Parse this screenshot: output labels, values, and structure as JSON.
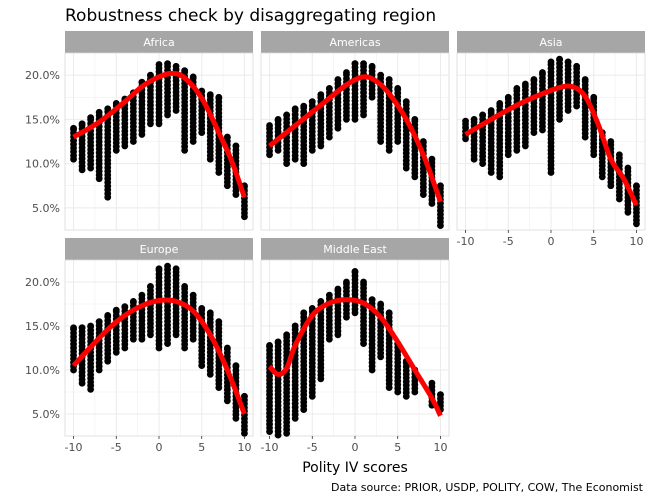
{
  "chart_data": {
    "type": "scatter",
    "title": "Robustness check by disaggregating region",
    "xlabel": "Polity IV scores",
    "ylabel": "",
    "caption": "Data source: PRIOR, USDP, POLITY, COW, The Economist",
    "xlim": [
      -11,
      11
    ],
    "ylim": [
      2.5,
      22.5
    ],
    "x_ticks": [
      -10,
      -5,
      0,
      5,
      10
    ],
    "x_tick_labels": [
      "-10",
      "-5",
      "0",
      "5",
      "10"
    ],
    "y_ticks": [
      5,
      10,
      15,
      20
    ],
    "y_tick_labels": [
      "5.0%",
      "10.0%",
      "15.0%",
      "20.0%"
    ],
    "grid": true,
    "colors": {
      "points": "#000000",
      "fit": "#ff0000",
      "strip": "#a6a6a6",
      "grid": "#ebebeb"
    },
    "panels": [
      {
        "name": "Africa",
        "fit": [
          [
            -10,
            13.0
          ],
          [
            -7,
            14.7
          ],
          [
            -4,
            17.0
          ],
          [
            -2,
            18.7
          ],
          [
            0,
            19.8
          ],
          [
            1.5,
            20.2
          ],
          [
            3,
            19.7
          ],
          [
            5,
            17.4
          ],
          [
            7,
            13.5
          ],
          [
            8.5,
            10.3
          ],
          [
            10,
            6.2
          ]
        ],
        "points": [
          {
            "x": -10,
            "min": 10.5,
            "max": 14.0
          },
          {
            "x": -9,
            "min": 9.3,
            "max": 14.5
          },
          {
            "x": -8,
            "min": 9.5,
            "max": 15.2
          },
          {
            "x": -7,
            "min": 8.3,
            "max": 15.8
          },
          {
            "x": -6,
            "min": 6.2,
            "max": 16.2
          },
          {
            "x": -5,
            "min": 11.5,
            "max": 16.8
          },
          {
            "x": -4,
            "min": 12.0,
            "max": 17.3
          },
          {
            "x": -3,
            "min": 12.5,
            "max": 18.0
          },
          {
            "x": -2,
            "min": 13.3,
            "max": 19.2
          },
          {
            "x": -1,
            "min": 14.5,
            "max": 20.0
          },
          {
            "x": 0,
            "min": 14.5,
            "max": 21.2
          },
          {
            "x": 1,
            "min": 15.5,
            "max": 21.3
          },
          {
            "x": 2,
            "min": 16.0,
            "max": 21.0
          },
          {
            "x": 3,
            "min": 11.5,
            "max": 20.5
          },
          {
            "x": 4,
            "min": 12.5,
            "max": 19.8
          },
          {
            "x": 5,
            "min": 13.5,
            "max": 18.2
          },
          {
            "x": 6,
            "min": 10.5,
            "max": 17.8
          },
          {
            "x": 7,
            "min": 9.0,
            "max": 17.5
          },
          {
            "x": 8,
            "min": 7.5,
            "max": 13.0
          },
          {
            "x": 9,
            "min": 6.5,
            "max": 12.0
          },
          {
            "x": 10,
            "min": 4.0,
            "max": 7.5
          }
        ]
      },
      {
        "name": "Americas",
        "fit": [
          [
            -10,
            12.0
          ],
          [
            -7,
            14.3
          ],
          [
            -4,
            16.6
          ],
          [
            -1,
            18.9
          ],
          [
            1,
            19.8
          ],
          [
            2.5,
            19.3
          ],
          [
            4,
            17.9
          ],
          [
            6,
            15.0
          ],
          [
            8,
            11.0
          ],
          [
            10,
            5.7
          ]
        ],
        "points": [
          {
            "x": -10,
            "min": 11.0,
            "max": 14.3
          },
          {
            "x": -9,
            "min": 11.5,
            "max": 15.0
          },
          {
            "x": -8,
            "min": 10.0,
            "max": 15.5
          },
          {
            "x": -7,
            "min": 10.5,
            "max": 16.2
          },
          {
            "x": -6,
            "min": 10.0,
            "max": 16.5
          },
          {
            "x": -5,
            "min": 11.5,
            "max": 17.0
          },
          {
            "x": -4,
            "min": 12.0,
            "max": 17.8
          },
          {
            "x": -3,
            "min": 13.0,
            "max": 18.5
          },
          {
            "x": -2,
            "min": 14.0,
            "max": 19.5
          },
          {
            "x": -1,
            "min": 15.0,
            "max": 20.3
          },
          {
            "x": 0,
            "min": 15.0,
            "max": 21.3
          },
          {
            "x": 1,
            "min": 15.5,
            "max": 21.3
          },
          {
            "x": 2,
            "min": 17.5,
            "max": 21.0
          },
          {
            "x": 3,
            "min": 12.5,
            "max": 20.0
          },
          {
            "x": 4,
            "min": 11.5,
            "max": 19.5
          },
          {
            "x": 5,
            "min": 12.5,
            "max": 18.5
          },
          {
            "x": 6,
            "min": 9.5,
            "max": 17.0
          },
          {
            "x": 7,
            "min": 8.5,
            "max": 15.0
          },
          {
            "x": 8,
            "min": 6.5,
            "max": 12.5
          },
          {
            "x": 9,
            "min": 5.5,
            "max": 10.5
          },
          {
            "x": 10,
            "min": 3.0,
            "max": 7.5
          }
        ]
      },
      {
        "name": "Asia",
        "fit": [
          [
            -10,
            13.3
          ],
          [
            -7,
            15.0
          ],
          [
            -4,
            16.6
          ],
          [
            -1,
            17.9
          ],
          [
            1,
            18.6
          ],
          [
            2.5,
            18.7
          ],
          [
            4,
            17.6
          ],
          [
            5.5,
            14.5
          ],
          [
            7,
            10.5
          ],
          [
            8.5,
            8.3
          ],
          [
            10,
            5.3
          ]
        ],
        "points": [
          {
            "x": -10,
            "min": 12.8,
            "max": 14.8
          },
          {
            "x": -9,
            "min": 10.5,
            "max": 15.0
          },
          {
            "x": -8,
            "min": 10.0,
            "max": 15.5
          },
          {
            "x": -7,
            "min": 9.0,
            "max": 16.0
          },
          {
            "x": -6,
            "min": 8.5,
            "max": 16.8
          },
          {
            "x": -5,
            "min": 11.0,
            "max": 17.5
          },
          {
            "x": -4,
            "min": 11.5,
            "max": 18.5
          },
          {
            "x": -3,
            "min": 12.0,
            "max": 19.0
          },
          {
            "x": -2,
            "min": 13.5,
            "max": 19.5
          },
          {
            "x": -1,
            "min": 13.8,
            "max": 20.3
          },
          {
            "x": 0,
            "min": 9.0,
            "max": 21.5
          },
          {
            "x": 1,
            "min": 15.0,
            "max": 21.8
          },
          {
            "x": 2,
            "min": 16.0,
            "max": 21.5
          },
          {
            "x": 3,
            "min": 16.5,
            "max": 21.0
          },
          {
            "x": 4,
            "min": 13.0,
            "max": 19.5
          },
          {
            "x": 5,
            "min": 11.0,
            "max": 17.5
          },
          {
            "x": 6,
            "min": 8.5,
            "max": 13.5
          },
          {
            "x": 7,
            "min": 7.5,
            "max": 12.5
          },
          {
            "x": 8,
            "min": 6.0,
            "max": 11.0
          },
          {
            "x": 9,
            "min": 4.5,
            "max": 9.5
          },
          {
            "x": 10,
            "min": 3.2,
            "max": 7.5
          }
        ]
      },
      {
        "name": "Europe",
        "fit": [
          [
            -10,
            10.5
          ],
          [
            -8,
            12.6
          ],
          [
            -6,
            14.6
          ],
          [
            -4,
            16.2
          ],
          [
            -2,
            17.3
          ],
          [
            0,
            17.9
          ],
          [
            2,
            17.8
          ],
          [
            4,
            16.7
          ],
          [
            6,
            14.0
          ],
          [
            8,
            10.0
          ],
          [
            10,
            5.0
          ]
        ],
        "points": [
          {
            "x": -10,
            "min": 10.0,
            "max": 14.8
          },
          {
            "x": -9,
            "min": 8.5,
            "max": 14.8
          },
          {
            "x": -8,
            "min": 7.8,
            "max": 15.0
          },
          {
            "x": -7,
            "min": 10.0,
            "max": 15.5
          },
          {
            "x": -6,
            "min": 11.0,
            "max": 16.2
          },
          {
            "x": -5,
            "min": 12.0,
            "max": 16.8
          },
          {
            "x": -4,
            "min": 12.5,
            "max": 17.2
          },
          {
            "x": -3,
            "min": 13.5,
            "max": 17.8
          },
          {
            "x": -2,
            "min": 13.5,
            "max": 18.5
          },
          {
            "x": -1,
            "min": 14.0,
            "max": 19.5
          },
          {
            "x": 0,
            "min": 12.5,
            "max": 21.5
          },
          {
            "x": 1,
            "min": 13.0,
            "max": 21.8
          },
          {
            "x": 2,
            "min": 14.0,
            "max": 21.5
          },
          {
            "x": 3,
            "min": 12.5,
            "max": 19.5
          },
          {
            "x": 4,
            "min": 13.5,
            "max": 18.5
          },
          {
            "x": 5,
            "min": 10.5,
            "max": 17.0
          },
          {
            "x": 6,
            "min": 9.5,
            "max": 16.5
          },
          {
            "x": 7,
            "min": 8.0,
            "max": 15.5
          },
          {
            "x": 8,
            "min": 6.5,
            "max": 12.5
          },
          {
            "x": 9,
            "min": 4.5,
            "max": 10.5
          },
          {
            "x": 10,
            "min": 2.8,
            "max": 7.0
          }
        ]
      },
      {
        "name": "Middle East",
        "fit": [
          [
            -10,
            10.4
          ],
          [
            -9,
            9.5
          ],
          [
            -8,
            10.2
          ],
          [
            -7,
            12.8
          ],
          [
            -5,
            16.2
          ],
          [
            -3,
            17.6
          ],
          [
            -1,
            18.0
          ],
          [
            1,
            17.6
          ],
          [
            3,
            16.0
          ],
          [
            5,
            13.2
          ],
          [
            7,
            10.0
          ],
          [
            9,
            6.8
          ],
          [
            10,
            4.8
          ]
        ],
        "points": [
          {
            "x": -10,
            "min": 3.0,
            "max": 12.8
          },
          {
            "x": -9,
            "min": 2.6,
            "max": 13.2
          },
          {
            "x": -8,
            "min": 2.8,
            "max": 14.0
          },
          {
            "x": -7,
            "min": 4.5,
            "max": 15.0
          },
          {
            "x": -6,
            "min": 5.5,
            "max": 16.5
          },
          {
            "x": -5,
            "min": 7.0,
            "max": 17.0
          },
          {
            "x": -4,
            "min": 9.0,
            "max": 17.8
          },
          {
            "x": -3,
            "min": 13.5,
            "max": 18.5
          },
          {
            "x": -2,
            "min": 14.0,
            "max": 19.2
          },
          {
            "x": -1,
            "min": 16.0,
            "max": 20.0
          },
          {
            "x": 0,
            "min": 16.5,
            "max": 21.2
          },
          {
            "x": 1,
            "min": 13.0,
            "max": 20.0
          },
          {
            "x": 2,
            "min": 10.0,
            "max": 18.0
          },
          {
            "x": 3,
            "min": 11.5,
            "max": 17.5
          },
          {
            "x": 4,
            "min": 8.0,
            "max": 16.5
          },
          {
            "x": 5,
            "min": 7.5,
            "max": 13.0
          },
          {
            "x": 6,
            "min": 7.0,
            "max": 11.0
          },
          {
            "x": 7,
            "min": 7.5,
            "max": 10.0
          },
          {
            "x": 9,
            "min": 6.0,
            "max": 8.5
          },
          {
            "x": 10,
            "min": 5.5,
            "max": 7.2
          }
        ]
      }
    ]
  }
}
